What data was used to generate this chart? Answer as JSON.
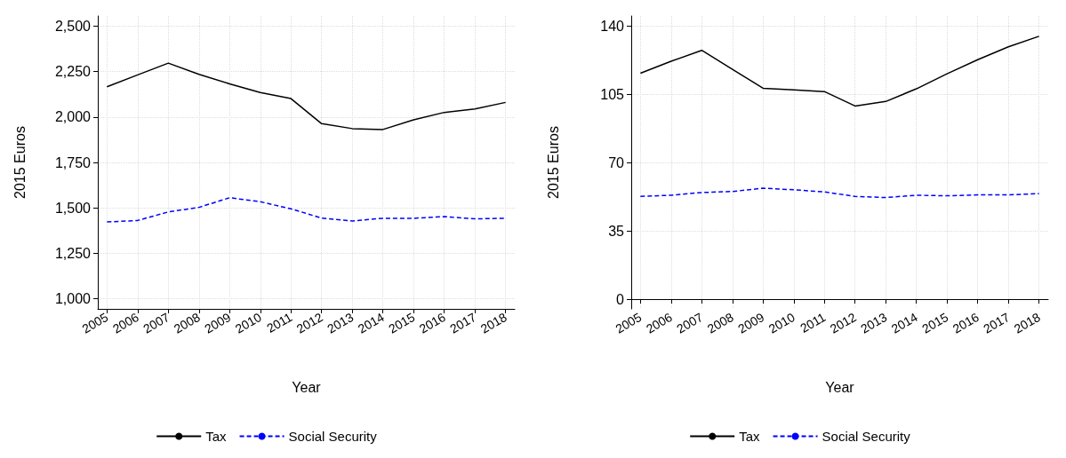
{
  "chart_data": [
    {
      "type": "line",
      "xlabel": "Year",
      "ylabel": "2015 Euros",
      "x": [
        2005,
        2006,
        2007,
        2008,
        2009,
        2010,
        2011,
        2012,
        2013,
        2014,
        2015,
        2016,
        2017,
        2018
      ],
      "series": [
        {
          "name": "Tax",
          "color": "#000000",
          "line_style": "solid",
          "values": [
            2166,
            2231,
            2296,
            2234,
            2182,
            2134,
            2101,
            1963,
            1936,
            1931,
            1984,
            2025,
            2044,
            2080
          ]
        },
        {
          "name": "Social Security",
          "color": "#0000ff",
          "line_style": "dashed",
          "values": [
            1423,
            1431,
            1478,
            1503,
            1556,
            1534,
            1495,
            1444,
            1428,
            1443,
            1443,
            1452,
            1440,
            1443
          ]
        }
      ],
      "xlim": [
        2004.7,
        2018.3
      ],
      "xticks": [
        2005,
        2006,
        2007,
        2008,
        2009,
        2010,
        2011,
        2012,
        2013,
        2014,
        2015,
        2016,
        2017,
        2018
      ],
      "ylim": [
        945,
        2555
      ],
      "yticks": [
        {
          "value": 1000,
          "label": "1,000"
        },
        {
          "value": 1250,
          "label": "1,250"
        },
        {
          "value": 1500,
          "label": "1,500"
        },
        {
          "value": 1750,
          "label": "1,750"
        },
        {
          "value": 2000,
          "label": "2,000"
        },
        {
          "value": 2250,
          "label": "2,250"
        },
        {
          "value": 2500,
          "label": "2,500"
        }
      ],
      "grid": true,
      "legend": "bottom",
      "marker": "none"
    },
    {
      "type": "line",
      "xlabel": "Year",
      "ylabel": "2015 Euros",
      "x": [
        2005,
        2006,
        2007,
        2008,
        2009,
        2010,
        2011,
        2012,
        2013,
        2014,
        2015,
        2016,
        2017,
        2018
      ],
      "series": [
        {
          "name": "Tax",
          "color": "#000000",
          "line_style": "solid",
          "values": [
            115.7,
            121.8,
            127.4,
            117.7,
            108,
            107.2,
            106.3,
            98.9,
            101.2,
            107.7,
            115.4,
            122.6,
            129.2,
            134.6
          ]
        },
        {
          "name": "Social Security",
          "color": "#0000ff",
          "line_style": "dashed",
          "values": [
            52.6,
            53.2,
            54.6,
            55.1,
            56.8,
            56,
            54.9,
            52.6,
            52,
            53.2,
            52.9,
            53.4,
            53.4,
            54
          ]
        }
      ],
      "xlim": [
        2004.7,
        2018.3
      ],
      "xticks": [
        2005,
        2006,
        2007,
        2008,
        2009,
        2010,
        2011,
        2012,
        2013,
        2014,
        2015,
        2016,
        2017,
        2018
      ],
      "ylim": [
        -5,
        145
      ],
      "yticks": [
        0,
        35,
        70,
        105,
        140
      ],
      "grid": true,
      "legend": "bottom",
      "marker": "none"
    }
  ]
}
